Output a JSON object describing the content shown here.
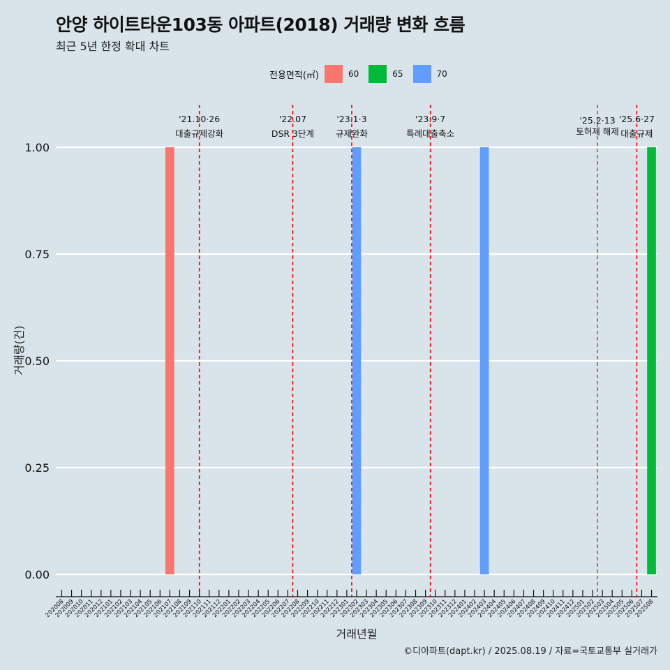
{
  "title": "안양 하이트타운103동 아파트(2018) 거래량 변화 흐름",
  "subtitle": "최근 5년 한정 확대 차트",
  "caption": "©디아파트(dapt.kr) / 2025.08.19 / 자료=국토교통부 실거래가",
  "legend": {
    "title": "전용면적(㎡)",
    "items": [
      {
        "label": "60",
        "color": "#f8766d"
      },
      {
        "label": "65",
        "color": "#00ba38"
      },
      {
        "label": "70",
        "color": "#619cff"
      }
    ]
  },
  "chart_data": {
    "type": "bar",
    "title": "안양 하이트타운103동 아파트(2018) 거래량 변화 흐름",
    "xlabel": "거래년월",
    "ylabel": "거래량(건)",
    "ylim": [
      0,
      1
    ],
    "yticks": [
      "0.00",
      "0.25",
      "0.50",
      "0.75",
      "1.00"
    ],
    "categories": [
      "202008",
      "202009",
      "202010",
      "202011",
      "202012",
      "202101",
      "202102",
      "202103",
      "202104",
      "202105",
      "202106",
      "202107",
      "202108",
      "202109",
      "202110",
      "202111",
      "202112",
      "202201",
      "202202",
      "202203",
      "202204",
      "202205",
      "202206",
      "202207",
      "202208",
      "202209",
      "202210",
      "202211",
      "202212",
      "202301",
      "202302",
      "202303",
      "202304",
      "202305",
      "202306",
      "202307",
      "202308",
      "202309",
      "202310",
      "202311",
      "202312",
      "202401",
      "202402",
      "202403",
      "202404",
      "202405",
      "202406",
      "202407",
      "202408",
      "202409",
      "202410",
      "202411",
      "202412",
      "202501",
      "202502",
      "202503",
      "202504",
      "202505",
      "202506",
      "202507",
      "202508"
    ],
    "series": [
      {
        "name": "60",
        "color": "#f8766d",
        "points": [
          {
            "x": "202107",
            "value": 1
          }
        ]
      },
      {
        "name": "65",
        "color": "#00ba38",
        "points": [
          {
            "x": "202508",
            "value": 1
          }
        ]
      },
      {
        "name": "70",
        "color": "#619cff",
        "points": [
          {
            "x": "202302",
            "value": 1
          },
          {
            "x": "202403",
            "value": 1
          }
        ]
      }
    ],
    "events": [
      {
        "x": 14.0,
        "date": "'21.10·26",
        "label": "대출규제강화",
        "small": false
      },
      {
        "x": 23.5,
        "date": "'22.07",
        "label": "DSR 3단계",
        "small": false
      },
      {
        "x": 29.5,
        "date": "'23.1·3",
        "label": "규제완화",
        "small": false
      },
      {
        "x": 37.5,
        "date": "'23.9·7",
        "label": "특례대출축소",
        "small": false
      },
      {
        "x": 54.5,
        "date": "'25.2·13",
        "label": "토허제 해제",
        "small": true
      },
      {
        "x": 58.5,
        "date": "'25.6·27",
        "label": "대출규제",
        "small": false
      }
    ]
  }
}
